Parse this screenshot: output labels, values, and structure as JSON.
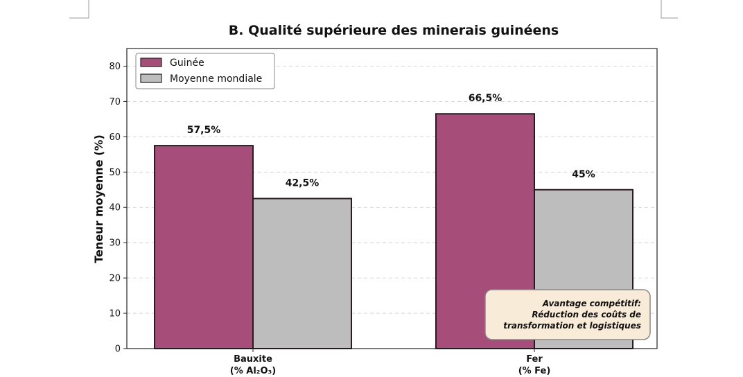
{
  "chart_data": {
    "type": "bar",
    "title": "B. Qualité supérieure des minerais guinéens",
    "ylabel": "Teneur moyenne (%)",
    "xlabel": "",
    "ylim": [
      0,
      85
    ],
    "yticks": [
      "0",
      "10",
      "20",
      "30",
      "40",
      "50",
      "60",
      "70",
      "80"
    ],
    "ytick_values": [
      0,
      10,
      20,
      30,
      40,
      50,
      60,
      70,
      80
    ],
    "grid": true,
    "legend_position": "top-left",
    "categories": [
      {
        "line1": "Bauxite",
        "line2": "(% Al₂O₃)"
      },
      {
        "line1": "Fer",
        "line2": "(% Fe)"
      }
    ],
    "series": [
      {
        "name": "Guinée",
        "color": "#a64d79",
        "values": [
          57.5,
          66.5
        ],
        "labels": [
          "57,5%",
          "66,5%"
        ]
      },
      {
        "name": "Moyenne mondiale",
        "color": "#bdbdbd",
        "values": [
          42.5,
          45
        ],
        "labels": [
          "42,5%",
          "45%"
        ]
      }
    ],
    "annotation": {
      "lines": [
        "Avantage compétitif:",
        "Réduction des coûts de",
        "transformation et logistiques"
      ],
      "background": "#f8ecd8"
    }
  }
}
